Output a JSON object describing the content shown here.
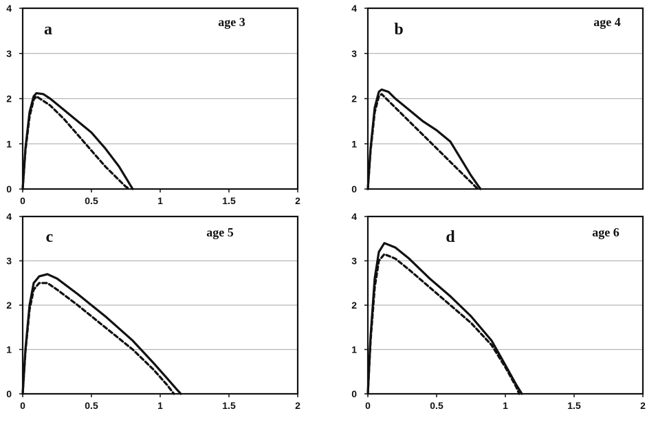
{
  "chart_data": [
    {
      "type": "line",
      "panel": "a",
      "annotation": "age 3",
      "xlim": [
        0,
        2
      ],
      "ylim": [
        0,
        4
      ],
      "x_ticks": [
        "0",
        "0.5",
        "1",
        "1.5",
        "2"
      ],
      "y_ticks": [
        "0",
        "1",
        "2",
        "3",
        "4"
      ],
      "grid": true,
      "series": [
        {
          "style": "solid",
          "x": [
            0,
            0.02,
            0.05,
            0.08,
            0.1,
            0.15,
            0.2,
            0.3,
            0.4,
            0.5,
            0.6,
            0.7,
            0.75,
            0.78,
            0.8
          ],
          "y": [
            0,
            0.9,
            1.7,
            2.05,
            2.12,
            2.1,
            2.0,
            1.75,
            1.5,
            1.25,
            0.9,
            0.5,
            0.25,
            0.1,
            0
          ]
        },
        {
          "style": "dashed",
          "x": [
            0,
            0.02,
            0.05,
            0.08,
            0.1,
            0.2,
            0.3,
            0.4,
            0.5,
            0.6,
            0.7,
            0.75,
            0.78
          ],
          "y": [
            0,
            0.85,
            1.6,
            1.98,
            2.05,
            1.85,
            1.55,
            1.2,
            0.85,
            0.5,
            0.2,
            0.05,
            0
          ]
        }
      ]
    },
    {
      "type": "line",
      "panel": "b",
      "annotation": "age 4",
      "xlim": [
        0,
        2
      ],
      "ylim": [
        0,
        4
      ],
      "y_ticks": [
        "0",
        "1",
        "2",
        "3",
        "4"
      ],
      "grid": true,
      "series": [
        {
          "style": "solid",
          "x": [
            0,
            0.02,
            0.05,
            0.08,
            0.1,
            0.15,
            0.2,
            0.3,
            0.4,
            0.5,
            0.6,
            0.65,
            0.7,
            0.75,
            0.8,
            0.82
          ],
          "y": [
            0,
            0.9,
            1.8,
            2.15,
            2.2,
            2.15,
            2.0,
            1.75,
            1.5,
            1.3,
            1.05,
            0.8,
            0.55,
            0.3,
            0.08,
            0
          ]
        },
        {
          "style": "dashed",
          "x": [
            0,
            0.02,
            0.05,
            0.08,
            0.1,
            0.2,
            0.3,
            0.4,
            0.5,
            0.6,
            0.7,
            0.75,
            0.8
          ],
          "y": [
            0,
            0.85,
            1.7,
            2.05,
            2.1,
            1.8,
            1.5,
            1.2,
            0.9,
            0.6,
            0.3,
            0.15,
            0
          ]
        }
      ]
    },
    {
      "type": "line",
      "panel": "c",
      "annotation": "age 5",
      "xlim": [
        0,
        2
      ],
      "ylim": [
        0,
        4
      ],
      "x_ticks": [
        "0",
        "0.5",
        "1",
        "1.5",
        "2"
      ],
      "y_ticks": [
        "0",
        "1",
        "2",
        "3",
        "4"
      ],
      "grid": true,
      "series": [
        {
          "style": "solid",
          "x": [
            0,
            0.02,
            0.05,
            0.08,
            0.12,
            0.18,
            0.25,
            0.4,
            0.6,
            0.8,
            0.95,
            1.05,
            1.12,
            1.15
          ],
          "y": [
            0,
            1.0,
            2.0,
            2.5,
            2.65,
            2.7,
            2.6,
            2.25,
            1.75,
            1.2,
            0.7,
            0.35,
            0.1,
            0
          ]
        },
        {
          "style": "dashed",
          "x": [
            0,
            0.02,
            0.05,
            0.08,
            0.12,
            0.18,
            0.25,
            0.4,
            0.6,
            0.8,
            0.95,
            1.05,
            1.1
          ],
          "y": [
            0,
            0.95,
            1.9,
            2.35,
            2.5,
            2.5,
            2.35,
            2.0,
            1.5,
            1.0,
            0.55,
            0.2,
            0
          ]
        }
      ]
    },
    {
      "type": "line",
      "panel": "d",
      "annotation": "age 6",
      "xlim": [
        0,
        2
      ],
      "ylim": [
        0,
        4
      ],
      "x_ticks": [
        "0",
        "0.5",
        "1",
        "1.5",
        "2"
      ],
      "y_ticks": [
        "0",
        "1",
        "2",
        "3",
        "4"
      ],
      "grid": true,
      "series": [
        {
          "style": "solid",
          "x": [
            0,
            0.02,
            0.05,
            0.08,
            0.12,
            0.2,
            0.3,
            0.45,
            0.6,
            0.75,
            0.9,
            1.0,
            1.08,
            1.12
          ],
          "y": [
            0,
            1.3,
            2.6,
            3.2,
            3.4,
            3.3,
            3.05,
            2.6,
            2.2,
            1.75,
            1.2,
            0.65,
            0.2,
            0
          ]
        },
        {
          "style": "dashed",
          "x": [
            0,
            0.02,
            0.05,
            0.08,
            0.12,
            0.2,
            0.3,
            0.45,
            0.6,
            0.75,
            0.9,
            1.0,
            1.08,
            1.1
          ],
          "y": [
            0,
            1.2,
            2.4,
            3.0,
            3.15,
            3.05,
            2.8,
            2.4,
            2.0,
            1.6,
            1.1,
            0.6,
            0.15,
            0
          ]
        }
      ]
    }
  ]
}
